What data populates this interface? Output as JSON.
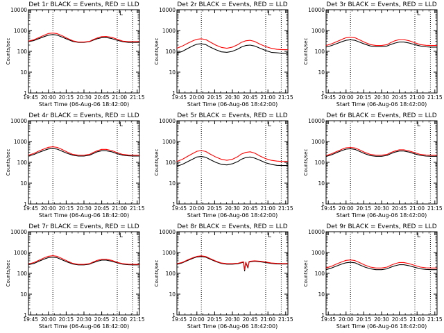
{
  "figure": {
    "xlabel": "Start Time (06-Aug-06 18:42:00)",
    "ylabel": "Counts/sec",
    "x_ticks": [
      "19:45",
      "20:00",
      "20:15",
      "20:30",
      "20:45",
      "21:00",
      "21:15"
    ],
    "y_ticks": [
      "1",
      "10",
      "100",
      "1000",
      "10000"
    ],
    "marker_text": "L",
    "colors": {
      "events": "#000000",
      "lld": "#ff0000",
      "axes": "#000000",
      "background": "#ffffff"
    }
  },
  "chart_data": [
    {
      "type": "line",
      "title": "Det 1r BLACK = Events, RED = LLD",
      "xlabel": "Start Time (06-Aug-06 18:42:00)",
      "ylabel": "Counts/sec",
      "xlim": [
        0,
        100
      ],
      "ylim": [
        1,
        10000
      ],
      "yscale": "log",
      "vlines": [
        22,
        80,
        94
      ],
      "x": [
        0,
        5,
        10,
        15,
        18,
        22,
        26,
        30,
        35,
        40,
        45,
        50,
        55,
        58,
        62,
        66,
        70,
        75,
        80,
        85,
        90,
        95,
        100
      ],
      "series": [
        {
          "values": [
            290,
            330,
            420,
            530,
            600,
            640,
            600,
            490,
            380,
            300,
            270,
            270,
            290,
            340,
            400,
            450,
            460,
            410,
            340,
            290,
            270,
            270,
            270
          ]
        },
        {
          "values": [
            310,
            360,
            470,
            620,
            720,
            760,
            700,
            570,
            420,
            320,
            280,
            280,
            300,
            360,
            440,
            510,
            520,
            470,
            380,
            310,
            290,
            290,
            290
          ]
        }
      ]
    },
    {
      "type": "line",
      "title": "Det 2r BLACK = Events, RED = LLD",
      "xlabel": "Start Time (06-Aug-06 18:42:00)",
      "ylabel": "Counts/sec",
      "xlim": [
        0,
        100
      ],
      "ylim": [
        1,
        10000
      ],
      "yscale": "log",
      "vlines": [
        22,
        80,
        94
      ],
      "x": [
        0,
        5,
        10,
        15,
        18,
        22,
        26,
        30,
        35,
        40,
        45,
        50,
        55,
        58,
        62,
        66,
        70,
        75,
        80,
        85,
        90,
        95,
        100
      ],
      "series": [
        {
          "values": [
            80,
            100,
            140,
            190,
            220,
            230,
            210,
            160,
            120,
            95,
            90,
            100,
            130,
            160,
            190,
            200,
            180,
            140,
            110,
            90,
            85,
            80,
            80
          ]
        },
        {
          "values": [
            140,
            180,
            250,
            330,
            380,
            400,
            370,
            280,
            200,
            155,
            140,
            160,
            210,
            270,
            320,
            340,
            300,
            220,
            170,
            140,
            125,
            120,
            120
          ]
        }
      ]
    },
    {
      "type": "line",
      "title": "Det 3r BLACK = Events, RED = LLD",
      "xlabel": "Start Time (06-Aug-06 18:42:00)",
      "ylabel": "Counts/sec",
      "xlim": [
        0,
        100
      ],
      "ylim": [
        1,
        10000
      ],
      "yscale": "log",
      "vlines": [
        22,
        80,
        94
      ],
      "x": [
        0,
        5,
        10,
        15,
        18,
        22,
        26,
        30,
        35,
        40,
        45,
        50,
        55,
        58,
        62,
        66,
        70,
        75,
        80,
        85,
        90,
        95,
        100
      ],
      "series": [
        {
          "values": [
            160,
            190,
            240,
            300,
            340,
            360,
            340,
            280,
            220,
            180,
            165,
            165,
            180,
            210,
            250,
            280,
            280,
            250,
            210,
            180,
            165,
            160,
            160
          ]
        },
        {
          "values": [
            190,
            230,
            300,
            390,
            450,
            480,
            450,
            360,
            270,
            210,
            190,
            190,
            210,
            260,
            320,
            370,
            370,
            320,
            260,
            210,
            195,
            190,
            190
          ]
        }
      ]
    },
    {
      "type": "line",
      "title": "Det 4r BLACK = Events, RED = LLD",
      "xlabel": "Start Time (06-Aug-06 18:42:00)",
      "ylabel": "Counts/sec",
      "xlim": [
        0,
        100
      ],
      "ylim": [
        1,
        10000
      ],
      "yscale": "log",
      "vlines": [
        22,
        80,
        94
      ],
      "x": [
        0,
        5,
        10,
        15,
        18,
        22,
        26,
        30,
        35,
        40,
        45,
        50,
        55,
        58,
        62,
        66,
        70,
        75,
        80,
        85,
        90,
        95,
        100
      ],
      "series": [
        {
          "values": [
            200,
            240,
            310,
            390,
            440,
            460,
            430,
            350,
            270,
            220,
            200,
            200,
            220,
            260,
            320,
            360,
            360,
            320,
            260,
            220,
            205,
            200,
            200
          ]
        },
        {
          "values": [
            220,
            270,
            360,
            460,
            530,
            560,
            520,
            420,
            310,
            240,
            220,
            220,
            240,
            290,
            360,
            420,
            420,
            370,
            290,
            240,
            225,
            220,
            220
          ]
        }
      ]
    },
    {
      "type": "line",
      "title": "Det 5r BLACK = Events, RED = LLD",
      "xlabel": "Start Time (06-Aug-06 18:42:00)",
      "ylabel": "Counts/sec",
      "xlim": [
        0,
        100
      ],
      "ylim": [
        1,
        10000
      ],
      "yscale": "log",
      "vlines": [
        22,
        80,
        94
      ],
      "x": [
        0,
        5,
        10,
        15,
        18,
        22,
        26,
        30,
        35,
        40,
        45,
        50,
        55,
        58,
        62,
        66,
        70,
        75,
        80,
        85,
        90,
        95,
        100
      ],
      "series": [
        {
          "values": [
            65,
            80,
            110,
            150,
            180,
            190,
            175,
            135,
            100,
            80,
            75,
            85,
            110,
            140,
            170,
            180,
            160,
            125,
            95,
            80,
            72,
            70,
            70
          ]
        },
        {
          "values": [
            110,
            140,
            200,
            280,
            340,
            370,
            330,
            250,
            180,
            140,
            125,
            140,
            190,
            250,
            300,
            320,
            280,
            200,
            150,
            125,
            115,
            110,
            110
          ]
        }
      ]
    },
    {
      "type": "line",
      "title": "Det 6r BLACK = Events, RED = LLD",
      "xlabel": "Start Time (06-Aug-06 18:42:00)",
      "ylabel": "Counts/sec",
      "xlim": [
        0,
        100
      ],
      "ylim": [
        1,
        10000
      ],
      "yscale": "log",
      "vlines": [
        22,
        80,
        94
      ],
      "x": [
        0,
        5,
        10,
        15,
        18,
        22,
        26,
        30,
        35,
        40,
        45,
        50,
        55,
        58,
        62,
        66,
        70,
        75,
        80,
        85,
        90,
        95,
        100
      ],
      "series": [
        {
          "values": [
            190,
            230,
            300,
            380,
            430,
            450,
            420,
            340,
            260,
            210,
            195,
            195,
            215,
            255,
            310,
            350,
            350,
            310,
            255,
            215,
            200,
            195,
            195
          ]
        },
        {
          "values": [
            210,
            260,
            340,
            440,
            500,
            520,
            490,
            400,
            300,
            240,
            220,
            220,
            240,
            290,
            350,
            400,
            400,
            350,
            290,
            240,
            225,
            220,
            220
          ]
        }
      ]
    },
    {
      "type": "line",
      "title": "Det 7r BLACK = Events, RED = LLD",
      "xlabel": "Start Time (06-Aug-06 18:42:00)",
      "ylabel": "Counts/sec",
      "xlim": [
        0,
        100
      ],
      "ylim": [
        1,
        10000
      ],
      "yscale": "log",
      "vlines": [
        22,
        80,
        94
      ],
      "x": [
        0,
        5,
        10,
        15,
        18,
        22,
        26,
        30,
        35,
        40,
        45,
        50,
        55,
        58,
        62,
        66,
        70,
        75,
        80,
        85,
        90,
        95,
        100
      ],
      "series": [
        {
          "values": [
            260,
            300,
            390,
            500,
            570,
            600,
            560,
            450,
            350,
            280,
            255,
            255,
            275,
            320,
            380,
            430,
            430,
            380,
            320,
            275,
            260,
            255,
            255
          ]
        },
        {
          "values": [
            280,
            330,
            440,
            580,
            660,
            700,
            650,
            520,
            390,
            300,
            270,
            270,
            290,
            345,
            420,
            480,
            480,
            420,
            340,
            290,
            275,
            270,
            270
          ]
        }
      ]
    },
    {
      "type": "line",
      "title": "Det 8r BLACK = Events, RED = LLD",
      "xlabel": "Start Time (06-Aug-06 18:42:00)",
      "ylabel": "Counts/sec",
      "xlim": [
        0,
        100
      ],
      "ylim": [
        1,
        10000
      ],
      "yscale": "log",
      "vlines": [
        22,
        80,
        94
      ],
      "x": [
        0,
        5,
        10,
        15,
        18,
        22,
        26,
        30,
        35,
        40,
        45,
        50,
        55,
        58,
        60,
        61,
        62,
        64,
        65,
        66,
        70,
        75,
        80,
        85,
        90,
        95,
        100
      ],
      "series": [
        {
          "values": [
            270,
            320,
            420,
            540,
            610,
            640,
            600,
            480,
            370,
            300,
            275,
            275,
            290,
            320,
            340,
            130,
            330,
            180,
            350,
            360,
            380,
            360,
            330,
            300,
            285,
            280,
            280
          ]
        },
        {
          "values": [
            290,
            340,
            450,
            580,
            650,
            690,
            640,
            510,
            390,
            315,
            290,
            290,
            305,
            335,
            360,
            150,
            350,
            200,
            370,
            380,
            400,
            380,
            350,
            315,
            300,
            295,
            295
          ]
        }
      ]
    },
    {
      "type": "line",
      "title": "Det 9r BLACK = Events, RED = LLD",
      "xlabel": "Start Time (06-Aug-06 18:42:00)",
      "ylabel": "Counts/sec",
      "xlim": [
        0,
        100
      ],
      "ylim": [
        1,
        10000
      ],
      "yscale": "log",
      "vlines": [
        22,
        80,
        94
      ],
      "x": [
        0,
        5,
        10,
        15,
        18,
        22,
        26,
        30,
        35,
        40,
        45,
        50,
        55,
        58,
        62,
        66,
        70,
        75,
        80,
        85,
        90,
        95,
        100
      ],
      "series": [
        {
          "values": [
            150,
            180,
            230,
            290,
            320,
            340,
            320,
            260,
            200,
            165,
            150,
            150,
            165,
            195,
            230,
            260,
            260,
            230,
            195,
            165,
            155,
            150,
            150
          ]
        },
        {
          "values": [
            180,
            220,
            290,
            370,
            420,
            440,
            410,
            330,
            250,
            200,
            180,
            180,
            200,
            240,
            290,
            330,
            330,
            290,
            240,
            200,
            185,
            180,
            180
          ]
        }
      ]
    }
  ]
}
